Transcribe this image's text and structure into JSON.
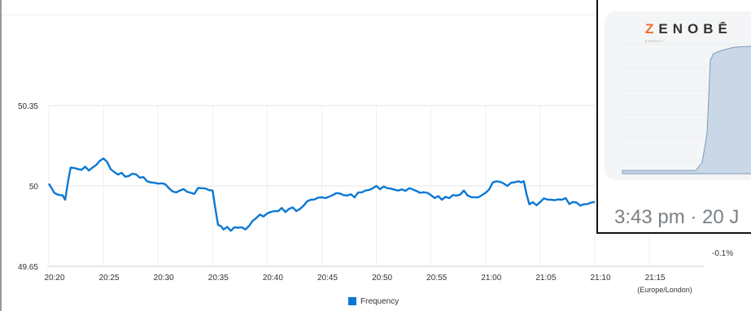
{
  "chart_data": {
    "type": "line",
    "title": "",
    "xlabel": "",
    "ylabel": "",
    "timezone_label": "(Europe/London)",
    "ylim": [
      49.65,
      50.35
    ],
    "y_ticks": [
      "50.35",
      "50",
      "49.65"
    ],
    "x_ticks": [
      "20:20",
      "20:25",
      "20:30",
      "20:35",
      "20:40",
      "20:45",
      "20:50",
      "20:55",
      "21:00",
      "21:05",
      "21:10",
      "21:15"
    ],
    "secondary_y_tick": "-0.1%",
    "legend_position": "bottom",
    "grid": true,
    "series": [
      {
        "name": "Frequency",
        "color": "#0b78d4",
        "points": [
          [
            "20:20",
            50.01
          ],
          [
            "20:20:30",
            49.97
          ],
          [
            "20:21",
            49.96
          ],
          [
            "20:21:30",
            49.94
          ],
          [
            "20:22",
            50.08
          ],
          [
            "20:23",
            50.07
          ],
          [
            "20:24",
            50.08
          ],
          [
            "20:25",
            50.12
          ],
          [
            "20:26",
            50.06
          ],
          [
            "20:27",
            50.04
          ],
          [
            "20:28",
            50.05
          ],
          [
            "20:29",
            50.02
          ],
          [
            "20:30",
            50.01
          ],
          [
            "20:31",
            49.99
          ],
          [
            "20:32",
            49.98
          ],
          [
            "20:33",
            49.97
          ],
          [
            "20:34",
            49.99
          ],
          [
            "20:35",
            49.98
          ],
          [
            "20:35:30",
            49.83
          ],
          [
            "20:36",
            49.81
          ],
          [
            "20:37",
            49.82
          ],
          [
            "20:38",
            49.81
          ],
          [
            "20:39",
            49.86
          ],
          [
            "20:40",
            49.88
          ],
          [
            "20:41",
            49.89
          ],
          [
            "20:42",
            49.9
          ],
          [
            "20:43",
            49.9
          ],
          [
            "20:44",
            49.94
          ],
          [
            "20:45",
            49.95
          ],
          [
            "20:46",
            49.96
          ],
          [
            "20:47",
            49.96
          ],
          [
            "20:48",
            49.95
          ],
          [
            "20:49",
            49.98
          ],
          [
            "20:50",
            50.0
          ],
          [
            "20:51",
            49.99
          ],
          [
            "20:52",
            49.98
          ],
          [
            "20:53",
            49.99
          ],
          [
            "20:54",
            49.97
          ],
          [
            "20:55",
            49.96
          ],
          [
            "20:56",
            49.94
          ],
          [
            "20:57",
            49.96
          ],
          [
            "20:58",
            49.98
          ],
          [
            "20:59",
            49.95
          ],
          [
            "21:00",
            49.97
          ],
          [
            "21:01",
            50.02
          ],
          [
            "21:02",
            50.0
          ],
          [
            "21:03",
            50.02
          ],
          [
            "21:03:30",
            50.02
          ],
          [
            "21:04",
            49.92
          ],
          [
            "21:05",
            49.93
          ],
          [
            "21:06",
            49.94
          ],
          [
            "21:07",
            49.94
          ],
          [
            "21:08",
            49.93
          ],
          [
            "21:09",
            49.92
          ],
          [
            "21:10",
            49.93
          ]
        ]
      }
    ]
  },
  "overlay": {
    "logo_first": "Z",
    "logo_rest": "ENOBĒ",
    "logo_sub": "ENERGY",
    "timestamp": "3:43 pm · 20 J"
  }
}
